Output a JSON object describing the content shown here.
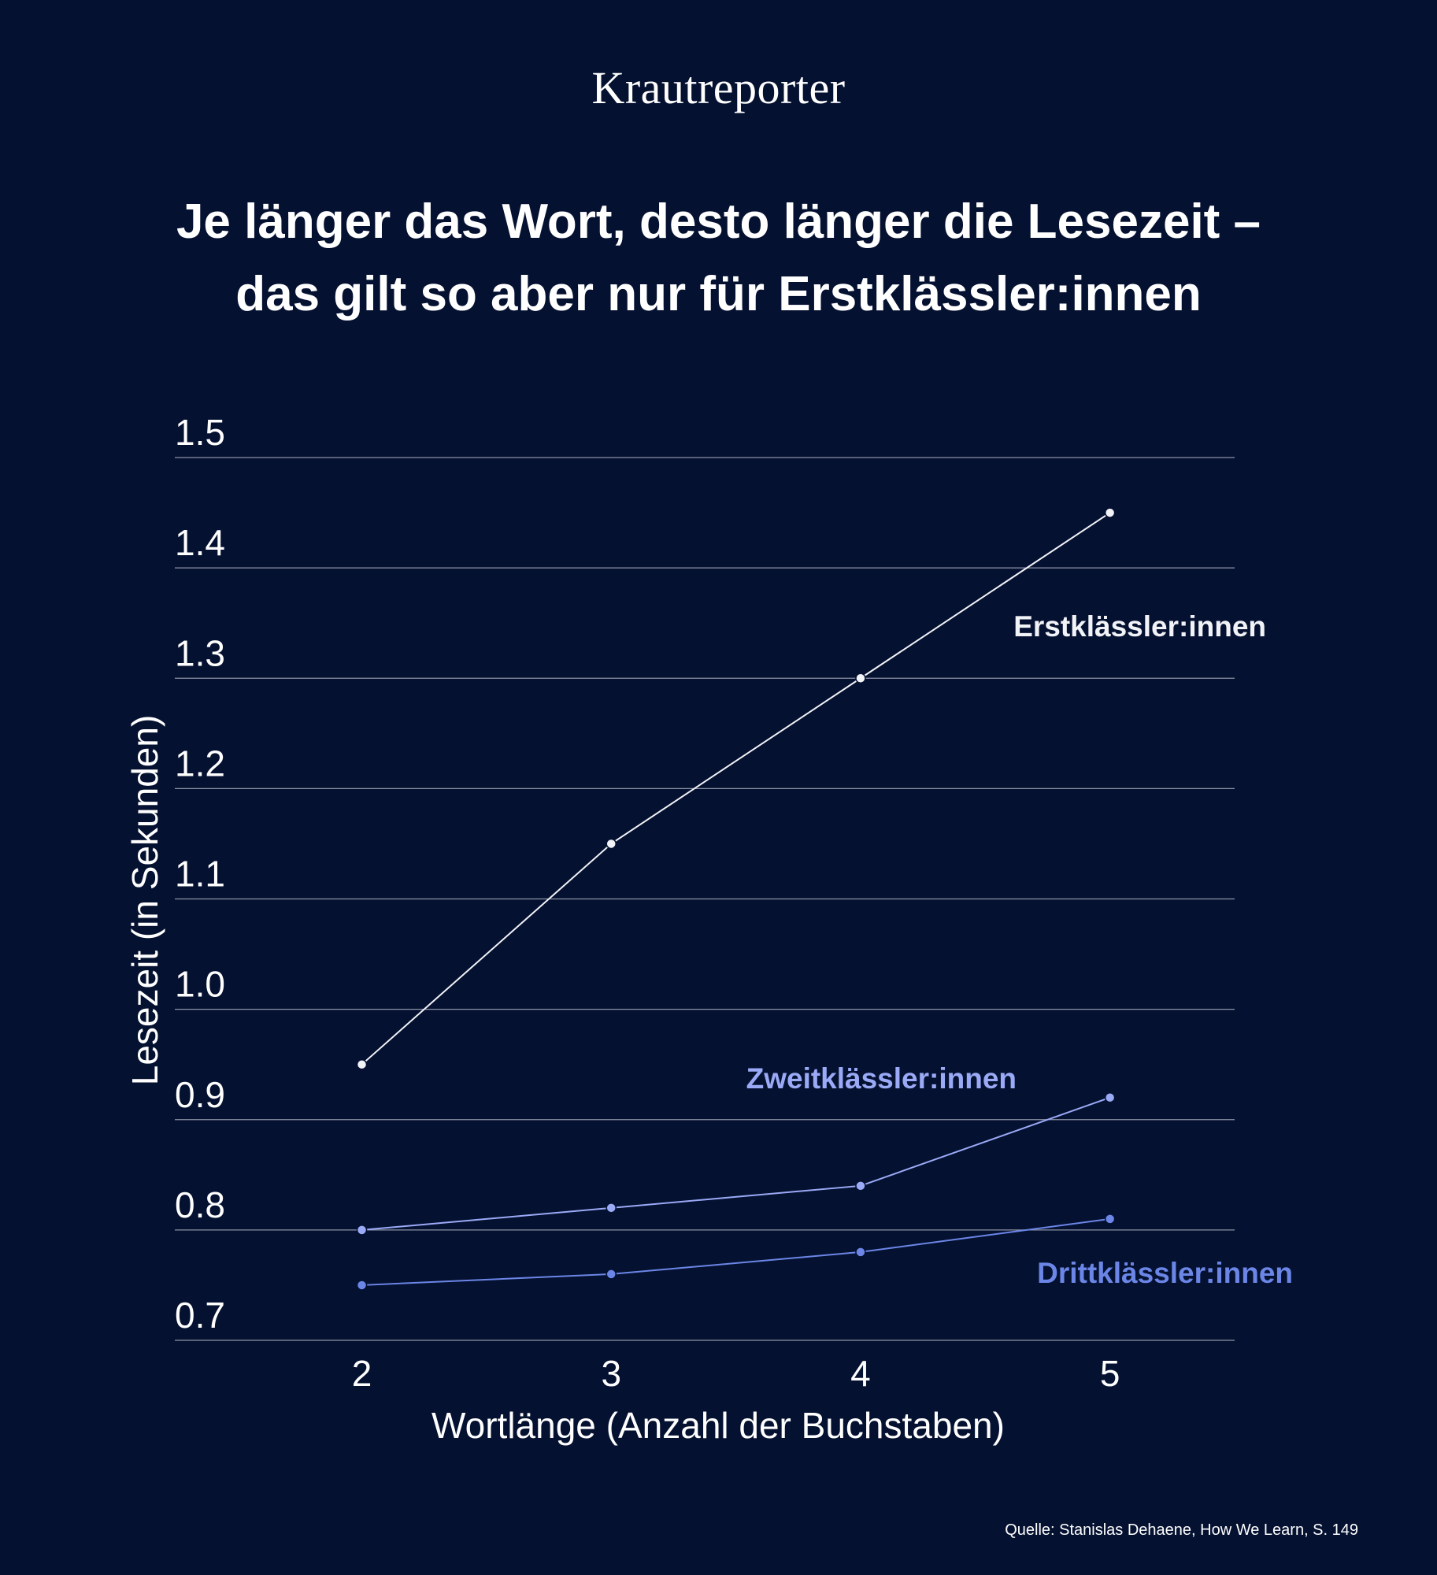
{
  "brand": "Krautreporter",
  "headline": {
    "line1": "Je länger das Wort, desto länger die Lesezeit –",
    "line2": "das gilt so aber nur für Erstklässler:innen"
  },
  "source": "Quelle: Stanislas Dehaene, How We Learn, S. 149",
  "colors": {
    "background": "#051131",
    "text": "#ffffff",
    "gridline": "#8d93a6",
    "erst": "#f2f3f7",
    "zweit": "#9aaaf6",
    "dritt": "#6b86e6"
  },
  "chart_data": {
    "type": "line",
    "x": [
      2,
      3,
      4,
      5
    ],
    "xlabel": "Wortlänge (Anzahl der Buchstaben)",
    "ylabel": "Lesezeit (in Sekunden)",
    "xlim": [
      1.25,
      5.5
    ],
    "ylim": [
      0.7,
      1.5
    ],
    "x_ticks": [
      "2",
      "3",
      "4",
      "5"
    ],
    "y_ticks": [
      "0.7",
      "0.8",
      "0.9",
      "1.0",
      "1.1",
      "1.2",
      "1.3",
      "1.4",
      "1.5"
    ],
    "y_tick_values": [
      0.7,
      0.8,
      0.9,
      1.0,
      1.1,
      1.2,
      1.3,
      1.4,
      1.5
    ],
    "grid": true,
    "series": [
      {
        "name": "Erstklässler:innen",
        "key": "erst",
        "values": [
          0.95,
          1.15,
          1.3,
          1.45
        ]
      },
      {
        "name": "Zweitklässler:innen",
        "key": "zweit",
        "values": [
          0.8,
          0.82,
          0.84,
          0.92
        ]
      },
      {
        "name": "Drittklässler:innen",
        "key": "dritt",
        "values": [
          0.75,
          0.76,
          0.78,
          0.81
        ]
      }
    ]
  }
}
